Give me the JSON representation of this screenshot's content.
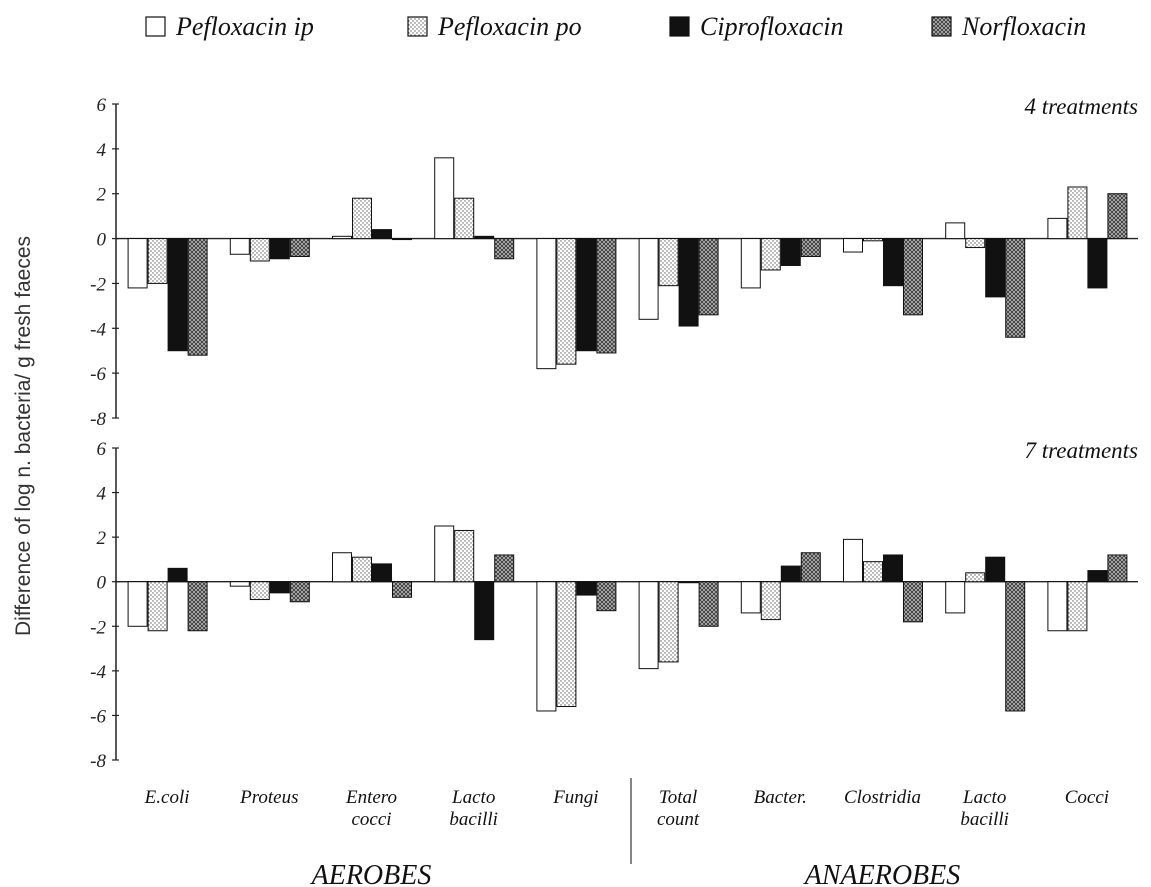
{
  "chart_data": {
    "type": "bar",
    "ylabel": "Difference of log n. bacteria/ g fresh faeces",
    "legend": [
      {
        "name": "Pefloxacin ip",
        "pattern": "white"
      },
      {
        "name": "Pefloxacin po",
        "pattern": "dotted"
      },
      {
        "name": "Ciprofloxacin",
        "pattern": "black"
      },
      {
        "name": "Norfloxacin",
        "pattern": "crosshatch"
      }
    ],
    "categories": [
      "E.coli",
      "Proteus",
      "Entero cocci",
      "Lacto bacilli",
      "Fungi",
      "Total count",
      "Bacter.",
      "Clostridia",
      "Lacto bacilli",
      "Cocci"
    ],
    "groups": [
      "AEROBES",
      "ANAEROBES"
    ],
    "group_sizes": [
      5,
      5
    ],
    "panels": [
      {
        "title": "4 treatments",
        "ylim": [
          -8,
          6
        ],
        "yticks": [
          6,
          4,
          2,
          0,
          -2,
          -4,
          -6,
          -8
        ],
        "series": [
          {
            "name": "Pefloxacin ip",
            "values": [
              -2.2,
              -0.7,
              0.1,
              3.6,
              -5.8,
              -3.6,
              -2.2,
              -0.6,
              0.7,
              0.9
            ]
          },
          {
            "name": "Pefloxacin po",
            "values": [
              -2.0,
              -1.0,
              1.8,
              1.8,
              -5.6,
              -2.1,
              -1.4,
              -0.1,
              -0.4,
              2.3
            ]
          },
          {
            "name": "Ciprofloxacin",
            "values": [
              -5.0,
              -0.9,
              0.4,
              0.1,
              -5.0,
              -3.9,
              -1.2,
              -2.1,
              -2.6,
              -2.2
            ]
          },
          {
            "name": "Norfloxacin",
            "values": [
              -5.2,
              -0.8,
              0.0,
              -0.9,
              -5.1,
              -3.4,
              -0.8,
              -3.4,
              -4.4,
              2.0
            ]
          }
        ]
      },
      {
        "title": "7 treatments",
        "ylim": [
          -8,
          6
        ],
        "yticks": [
          6,
          4,
          2,
          0,
          -2,
          -4,
          -6,
          -8
        ],
        "series": [
          {
            "name": "Pefloxacin ip",
            "values": [
              -2.0,
              -0.2,
              1.3,
              2.5,
              -5.8,
              -3.9,
              -1.4,
              1.9,
              -1.4,
              -2.2
            ]
          },
          {
            "name": "Pefloxacin po",
            "values": [
              -2.2,
              -0.8,
              1.1,
              2.3,
              -5.6,
              -3.6,
              -1.7,
              0.9,
              0.4,
              -2.2
            ]
          },
          {
            "name": "Ciprofloxacin",
            "values": [
              0.6,
              -0.5,
              0.8,
              -2.6,
              -0.6,
              0.0,
              0.7,
              1.2,
              1.1,
              0.5
            ]
          },
          {
            "name": "Norfloxacin",
            "values": [
              -2.2,
              -0.9,
              -0.7,
              1.2,
              -1.3,
              -2.0,
              1.3,
              -1.8,
              -5.8,
              1.2
            ]
          }
        ]
      }
    ]
  }
}
